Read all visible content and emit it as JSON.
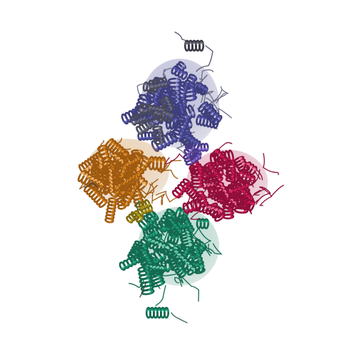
{
  "scene": {
    "background": "#ffffff",
    "subject": "protein-tetramer-cartoon",
    "chains": [
      {
        "id": "A",
        "color_main": "#5b5bb4",
        "color_shade": "#3e3e7c",
        "color_light": "#8a8ad0",
        "color_grey": "#6f6f8a"
      },
      {
        "id": "B",
        "color_main": "#d4821f",
        "color_shade": "#9e5a10",
        "color_light": "#f0b060"
      },
      {
        "id": "C",
        "color_main": "#d11a57",
        "color_shade": "#8f0f3a",
        "color_light": "#ee6a92"
      },
      {
        "id": "D",
        "color_main": "#1f9e78",
        "color_shade": "#136a50",
        "color_light": "#6fd0b0"
      }
    ],
    "accent_colors": {
      "interface_yellow": "#b8a020",
      "interface_violet": "#8a6ad0"
    }
  }
}
